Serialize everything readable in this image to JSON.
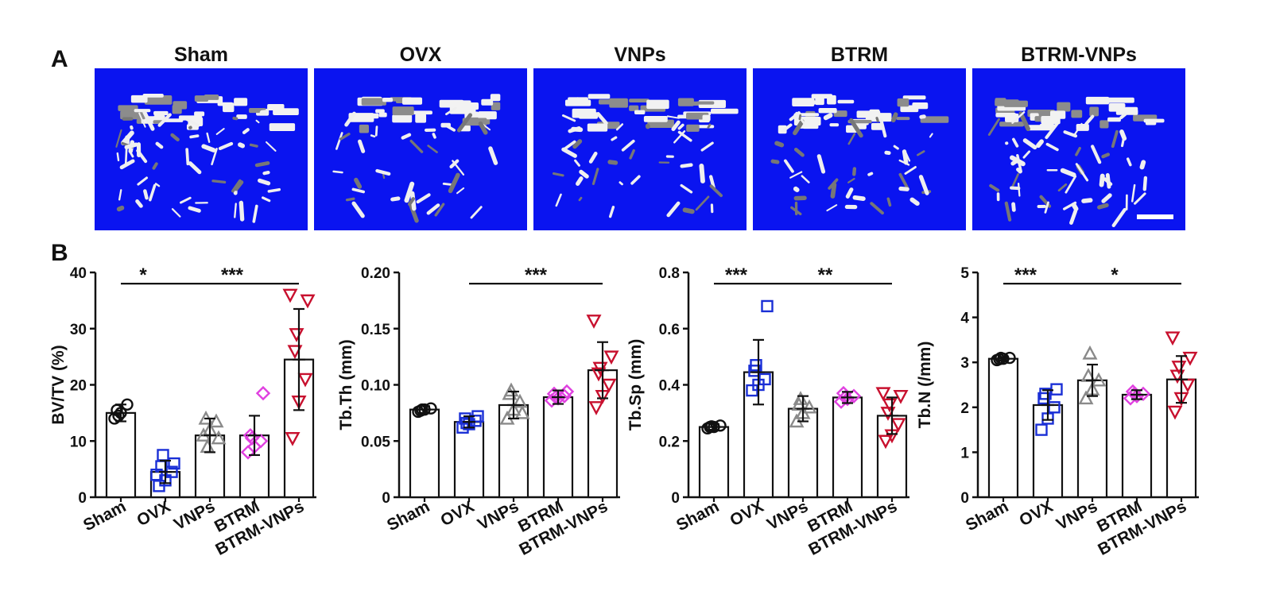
{
  "figure": {
    "panel_a_letter": "A",
    "panel_b_letter": "B",
    "image_groups": [
      "Sham",
      "OVX",
      "VNPs",
      "BTRM",
      "BTRM-VNPs"
    ],
    "image_background_color": "#0a14f0",
    "scale_bar_color": "#ffffff"
  },
  "group_colors": {
    "Sham": "#111111",
    "OVX": "#1a2fd6",
    "VNPs": "#8a8a8a",
    "BTRM": "#e040e0",
    "BTRM-VNPs": "#c8102e"
  },
  "group_markers": {
    "Sham": "circle",
    "OVX": "square",
    "VNPs": "triangle-up",
    "BTRM": "diamond",
    "BTRM-VNPs": "triangle-down"
  },
  "chart_data": [
    {
      "type": "bar",
      "categories": [
        "Sham",
        "OVX",
        "VNPs",
        "BTRM",
        "BTRM-VNPs"
      ],
      "ylabel": "BV/TV (%)",
      "ylim": [
        0,
        40
      ],
      "yticks": [
        "0",
        "10",
        "20",
        "30",
        "40"
      ],
      "ytick_values": [
        0,
        10,
        20,
        30,
        40
      ],
      "values": [
        15,
        4.5,
        11,
        11,
        24.5
      ],
      "errors": [
        1.5,
        2,
        3,
        3.5,
        9
      ],
      "points": [
        [
          14,
          15,
          16.5,
          15.5,
          14.5
        ],
        [
          2,
          3,
          4.5,
          5.5,
          7.5,
          6,
          4
        ],
        [
          11,
          12,
          13.5,
          14,
          9,
          10.5
        ],
        [
          8,
          9,
          10,
          11,
          10.5,
          18.5
        ],
        [
          10.5,
          17,
          21,
          26,
          29,
          35,
          36
        ]
      ],
      "significance": [
        {
          "from": 0,
          "to": 1,
          "label": "*",
          "y": 38
        },
        {
          "from": 1,
          "to": 4,
          "label": "***",
          "y": 38
        }
      ]
    },
    {
      "type": "bar",
      "categories": [
        "Sham",
        "OVX",
        "VNPs",
        "BTRM",
        "BTRM-VNPs"
      ],
      "ylabel": "Tb.Th (mm)",
      "ylim": [
        0,
        0.2
      ],
      "yticks": [
        "0",
        "0.05",
        "0.10",
        "0.15",
        "0.20"
      ],
      "ytick_values": [
        0,
        0.05,
        0.1,
        0.15,
        0.2
      ],
      "values": [
        0.078,
        0.067,
        0.082,
        0.089,
        0.113
      ],
      "errors": [
        0.003,
        0.005,
        0.012,
        0.006,
        0.025
      ],
      "points": [
        [
          0.076,
          0.078,
          0.079,
          0.077,
          0.078
        ],
        [
          0.062,
          0.065,
          0.068,
          0.07,
          0.066,
          0.072
        ],
        [
          0.07,
          0.078,
          0.085,
          0.092,
          0.095,
          0.075
        ],
        [
          0.086,
          0.088,
          0.09,
          0.092,
          0.089,
          0.094
        ],
        [
          0.08,
          0.09,
          0.1,
          0.11,
          0.115,
          0.125,
          0.157
        ]
      ],
      "significance": [
        {
          "from": 1,
          "to": 4,
          "label": "***",
          "y": 0.19
        }
      ]
    },
    {
      "type": "bar",
      "categories": [
        "Sham",
        "OVX",
        "VNPs",
        "BTRM",
        "BTRM-VNPs"
      ],
      "ylabel": "Tb.Sp (mm)",
      "ylim": [
        0,
        0.8
      ],
      "yticks": [
        "0",
        "0.2",
        "0.4",
        "0.6",
        "0.8"
      ],
      "ytick_values": [
        0,
        0.2,
        0.4,
        0.6,
        0.8
      ],
      "values": [
        0.25,
        0.445,
        0.315,
        0.355,
        0.29
      ],
      "errors": [
        0.01,
        0.115,
        0.045,
        0.02,
        0.065
      ],
      "points": [
        [
          0.245,
          0.25,
          0.255,
          0.25,
          0.252
        ],
        [
          0.38,
          0.4,
          0.42,
          0.45,
          0.47,
          0.68
        ],
        [
          0.27,
          0.3,
          0.32,
          0.33,
          0.35
        ],
        [
          0.34,
          0.35,
          0.36,
          0.37,
          0.355
        ],
        [
          0.2,
          0.22,
          0.26,
          0.3,
          0.33,
          0.36,
          0.37
        ]
      ],
      "significance": [
        {
          "from": 0,
          "to": 1,
          "label": "***",
          "y": 0.76
        },
        {
          "from": 1,
          "to": 4,
          "label": "**",
          "y": 0.76
        }
      ]
    },
    {
      "type": "bar",
      "categories": [
        "Sham",
        "OVX",
        "VNPs",
        "BTRM",
        "BTRM-VNPs"
      ],
      "ylabel": "Tb.N (/mm)",
      "ylim": [
        0,
        5
      ],
      "yticks": [
        "0",
        "1",
        "2",
        "3",
        "4",
        "5"
      ],
      "ytick_values": [
        0,
        1,
        2,
        3,
        4,
        5
      ],
      "values": [
        3.08,
        2.05,
        2.6,
        2.28,
        2.62
      ],
      "errors": [
        0.04,
        0.33,
        0.35,
        0.1,
        0.52
      ],
      "points": [
        [
          3.05,
          3.08,
          3.1,
          3.07,
          3.1
        ],
        [
          1.5,
          1.75,
          2.0,
          2.2,
          2.3,
          2.4
        ],
        [
          2.2,
          2.4,
          2.6,
          2.7,
          3.2
        ],
        [
          2.2,
          2.25,
          2.3,
          2.35,
          2.3
        ],
        [
          1.9,
          2.2,
          2.5,
          2.7,
          2.9,
          3.1,
          3.55
        ]
      ],
      "significance": [
        {
          "from": 0,
          "to": 1,
          "label": "***",
          "y": 4.75
        },
        {
          "from": 1,
          "to": 4,
          "label": "*",
          "y": 4.75
        }
      ]
    }
  ]
}
